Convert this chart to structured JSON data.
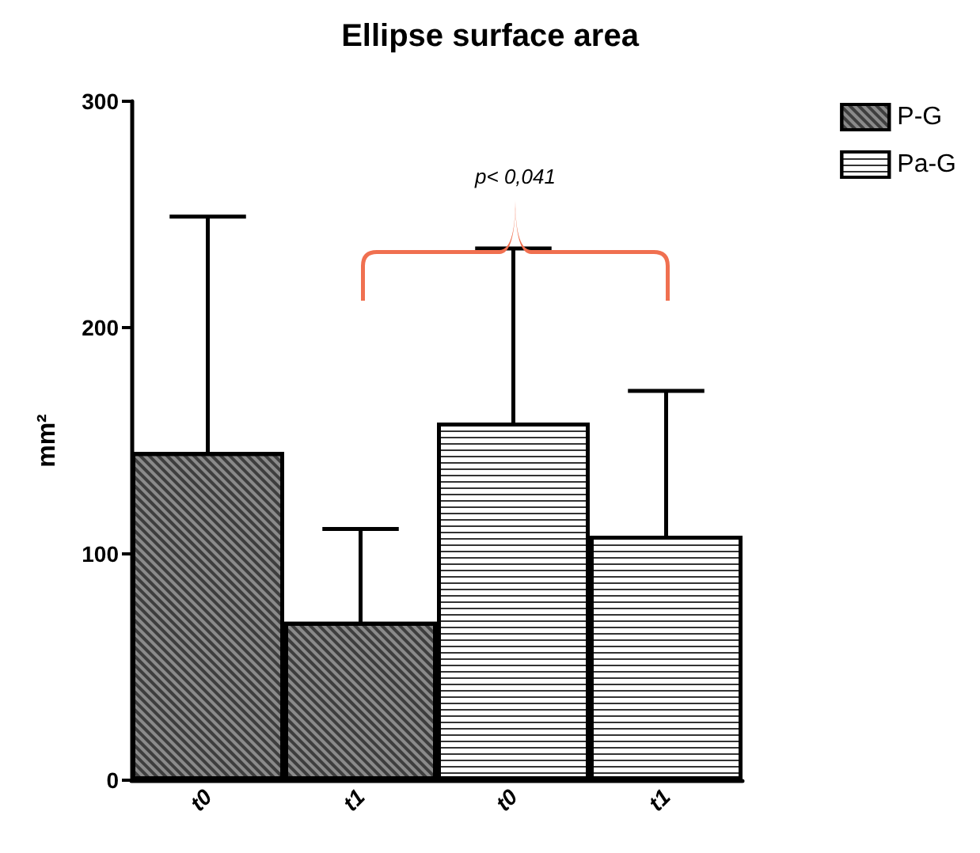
{
  "chart_data": {
    "type": "bar",
    "title": "Ellipse surface area",
    "ylabel": "mm²",
    "categories": [
      "t0",
      "t1",
      "t0",
      "t1"
    ],
    "series": [
      {
        "name": "P-G",
        "color": "#8a8a8a",
        "values": [
          145,
          70,
          null,
          null
        ],
        "errors": [
          104,
          41,
          null,
          null
        ]
      },
      {
        "name": "Pa-G",
        "color": "#ffffff",
        "values": [
          null,
          null,
          158,
          108
        ],
        "errors": [
          null,
          null,
          77,
          64
        ]
      }
    ],
    "ylim": [
      0,
      300
    ],
    "yticks": [
      0,
      100,
      200,
      300
    ],
    "grid": false,
    "legend": "top right",
    "annotations": [
      "p< 0,041"
    ]
  }
}
